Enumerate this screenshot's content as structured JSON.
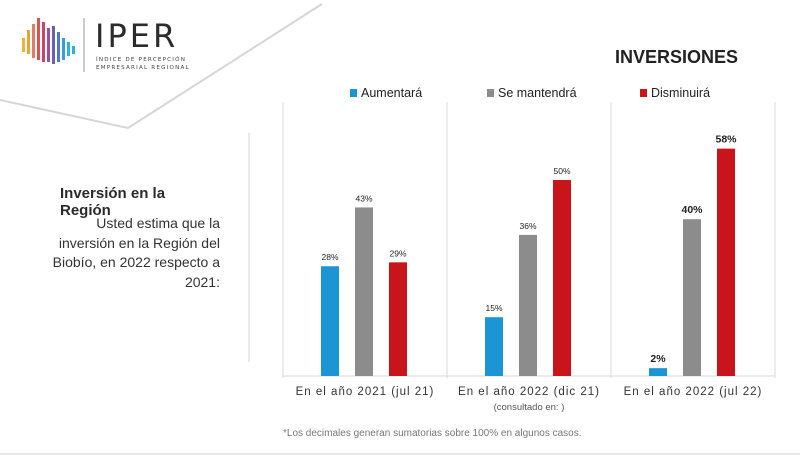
{
  "logo": {
    "word": "IPER",
    "sub_line1": "ÍNDICE DE PERCEPCIÓN",
    "sub_line2": "EMPRESARIAL REGIONAL"
  },
  "header": {
    "title": "INVERSIONES"
  },
  "left": {
    "title": "Inversión en la Región",
    "question": "Usted estima que la inversión en la Región del Biobío, en 2022 respecto a 2021:"
  },
  "footnote": "*Los decimales generan sumatorias sobre 100% en algunos casos.",
  "colors": {
    "aumentara": "#1b95d3",
    "mantendra": "#8c8c8c",
    "disminuira": "#c8151b",
    "divider": "#d9d9d9"
  },
  "chart_data": {
    "type": "bar",
    "title": "INVERSIONES",
    "categories": [
      "En el año 2021 (jul 21)",
      "En el año 2022 (dic 21)",
      "En el año 2022 (jul 22)"
    ],
    "category_notes": [
      "",
      "(consultado en: )",
      ""
    ],
    "series": [
      {
        "name": "Aumentará",
        "values": [
          28,
          15,
          2
        ],
        "labels": [
          "28%",
          "15%",
          "2%"
        ]
      },
      {
        "name": "Se mantendrá",
        "values": [
          43,
          36,
          40
        ],
        "labels": [
          "43%",
          "36%",
          "40%"
        ]
      },
      {
        "name": "Disminuirá",
        "values": [
          29,
          50,
          58
        ],
        "labels": [
          "29%",
          "50%",
          "58%"
        ]
      }
    ],
    "ylim": [
      0,
      100
    ],
    "grid": false,
    "legend_position": "top",
    "xlabel": "",
    "ylabel": ""
  }
}
